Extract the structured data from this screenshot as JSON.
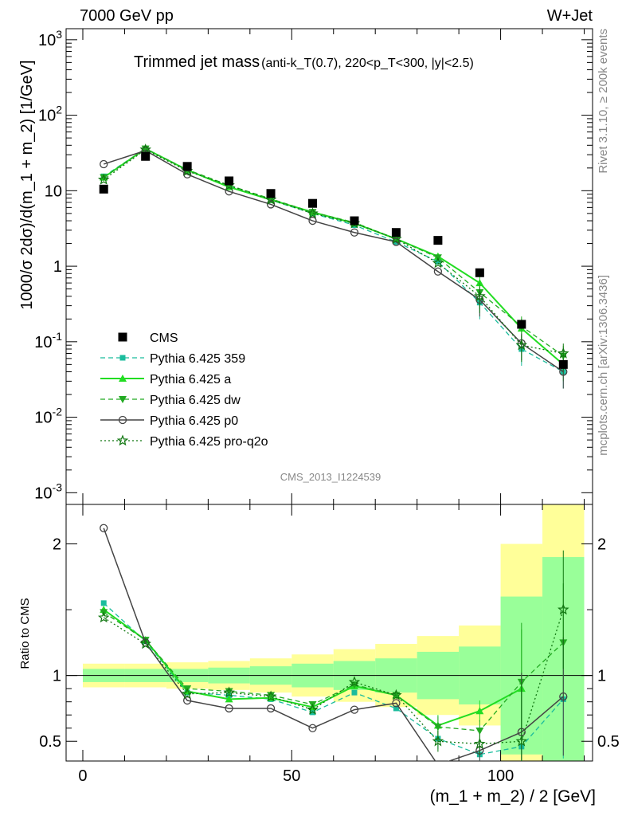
{
  "header": {
    "left": "7000 GeV pp",
    "right": "W+Jet"
  },
  "plot_title": "Trimmed jet mass",
  "plot_subtitle": "(anti-k_T(0.7), 220<p_T<300, |y|<2.5)",
  "watermark": "CMS_2013_I1224539",
  "side_text_top": "Rivet 3.1.10, ≥ 200k events",
  "side_text_bottom": "mcplots.cern.ch [arXiv:1306.3436]",
  "colors": {
    "data": "#000000",
    "mc1": "#1abc9c",
    "mc2": "#22dd22",
    "mc3": "#22aa22",
    "mc4": "#444444",
    "mc5": "#117711",
    "band_inner": "#99ff99",
    "band_outer": "#ffff99"
  },
  "chart_data": [
    {
      "type": "scatter",
      "name": "main",
      "ylabel": "1000/σ 2dσ)/d(m_1 + m_2) [1/GeV]",
      "yscale": "log",
      "ylim": [
        0.0007,
        1400
      ],
      "xlim": [
        -4,
        122
      ],
      "y_ticks": [
        "10^-3",
        "10^-2",
        "10^-1",
        "1",
        "10",
        "10^2",
        "10^3"
      ],
      "legend_position": "lower-left",
      "x": [
        5,
        15,
        25,
        35,
        45,
        55,
        65,
        75,
        85,
        95,
        105,
        115
      ],
      "series": [
        {
          "name": "CMS",
          "values": [
            10.5,
            28.5,
            21.0,
            13.5,
            9.2,
            6.8,
            4.0,
            2.8,
            2.2,
            0.82,
            0.17,
            0.05
          ]
        },
        {
          "name": "Pythia 6.425 359",
          "values": [
            15.5,
            36,
            18.5,
            11.5,
            7.5,
            5.0,
            3.5,
            2.1,
            1.15,
            0.33,
            0.08,
            0.04
          ]
        },
        {
          "name": "Pythia 6.425 a",
          "values": [
            15.0,
            36,
            18.8,
            11.2,
            7.6,
            5.2,
            3.7,
            2.3,
            1.35,
            0.6,
            0.15,
            0.05
          ]
        },
        {
          "name": "Pythia 6.425 dw",
          "values": [
            15.0,
            36,
            19.0,
            11.8,
            7.8,
            5.2,
            3.8,
            2.3,
            1.3,
            0.45,
            0.16,
            0.065
          ]
        },
        {
          "name": "Pythia 6.425 p0",
          "values": [
            22.5,
            34,
            16.5,
            9.8,
            6.6,
            4.0,
            2.8,
            2.1,
            0.85,
            0.36,
            0.095,
            0.04
          ]
        },
        {
          "name": "Pythia 6.425 pro-q2o",
          "values": [
            14.0,
            35,
            18.2,
            11.8,
            7.6,
            5.0,
            3.7,
            2.3,
            1.1,
            0.4,
            0.09,
            0.07
          ]
        }
      ]
    },
    {
      "type": "line",
      "name": "ratio",
      "xlabel": "(m_1 + m_2) / 2 [GeV]",
      "ylabel": "Ratio to CMS",
      "ylim": [
        0.35,
        2.3
      ],
      "xlim": [
        -4,
        122
      ],
      "x_ticks": [
        0,
        50,
        100
      ],
      "y_ticks": [
        0.5,
        1,
        2
      ],
      "band_edges": [
        0,
        10,
        20,
        30,
        40,
        50,
        60,
        70,
        80,
        90,
        100,
        110,
        120
      ],
      "band_inner": [
        [
          0.95,
          1.05
        ],
        [
          0.95,
          1.05
        ],
        [
          0.95,
          1.05
        ],
        [
          0.94,
          1.06
        ],
        [
          0.93,
          1.07
        ],
        [
          0.91,
          1.09
        ],
        [
          0.89,
          1.11
        ],
        [
          0.87,
          1.13
        ],
        [
          0.82,
          1.18
        ],
        [
          0.78,
          1.22
        ],
        [
          0.4,
          1.6
        ],
        [
          0.35,
          1.9
        ]
      ],
      "band_outer": [
        [
          0.91,
          1.09
        ],
        [
          0.91,
          1.09
        ],
        [
          0.9,
          1.1
        ],
        [
          0.89,
          1.11
        ],
        [
          0.87,
          1.13
        ],
        [
          0.84,
          1.16
        ],
        [
          0.8,
          1.2
        ],
        [
          0.76,
          1.24
        ],
        [
          0.7,
          1.3
        ],
        [
          0.62,
          1.38
        ],
        [
          0.35,
          2.0
        ],
        [
          0.35,
          2.3
        ]
      ],
      "x": [
        5,
        15,
        25,
        35,
        45,
        55,
        65,
        75,
        85,
        95,
        105,
        115
      ],
      "series": [
        {
          "name": "Pythia 6.425 359",
          "values": [
            1.55,
            1.26,
            0.87,
            0.85,
            0.82,
            0.72,
            0.87,
            0.75,
            0.52,
            0.4,
            0.46,
            0.82
          ]
        },
        {
          "name": "Pythia 6.425 a",
          "values": [
            1.5,
            1.27,
            0.88,
            0.82,
            0.83,
            0.76,
            0.92,
            0.85,
            0.62,
            0.73,
            0.9,
            null
          ]
        },
        {
          "name": "Pythia 6.425 dw",
          "values": [
            1.48,
            1.27,
            0.9,
            0.88,
            0.85,
            0.78,
            0.93,
            0.85,
            0.61,
            0.58,
            0.95,
            1.25
          ]
        },
        {
          "name": "Pythia 6.425 p0",
          "values": [
            2.12,
            1.25,
            0.81,
            0.75,
            0.75,
            0.6,
            0.74,
            0.79,
            0.32,
            0.43,
            0.57,
            0.84
          ]
        },
        {
          "name": "Pythia 6.425 pro-q2o",
          "values": [
            1.44,
            1.24,
            0.86,
            0.87,
            0.84,
            0.74,
            0.95,
            0.85,
            0.5,
            0.48,
            0.5,
            1.5
          ]
        }
      ]
    }
  ]
}
